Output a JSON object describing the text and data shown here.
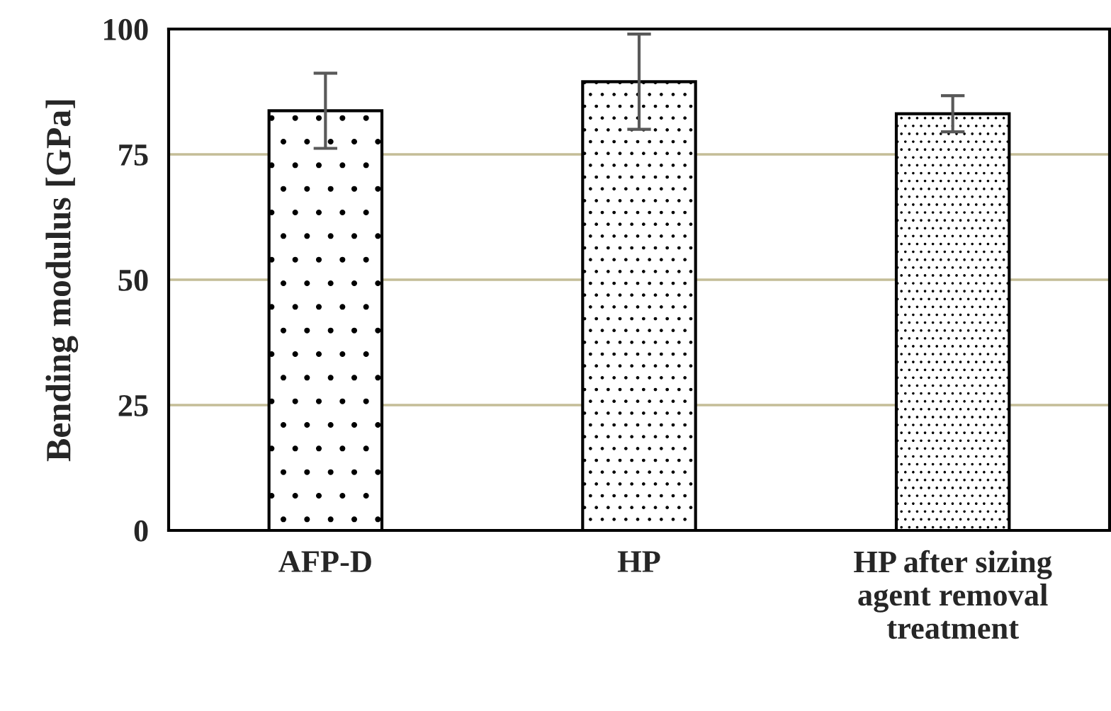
{
  "chart_data": {
    "type": "bar",
    "ylabel": "Bending modulus [GPa]",
    "categories": [
      "AFP-D",
      "HP",
      "HP after sizing\nagent removal\ntreatment"
    ],
    "values": [
      83.7,
      89.5,
      83.1
    ],
    "errors": [
      7.5,
      9.5,
      3.6
    ],
    "ylim": [
      0,
      100
    ],
    "yticks": [
      0,
      25,
      50,
      75,
      100
    ],
    "grid": "y",
    "legend": false
  }
}
